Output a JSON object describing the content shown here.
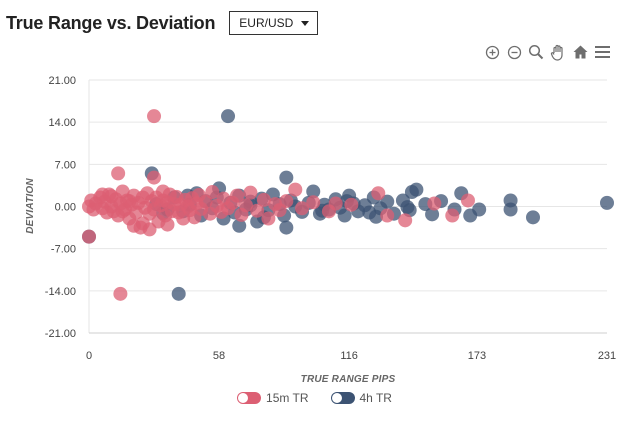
{
  "header": {
    "title": "True Range vs. Deviation",
    "pair": "EUR/USD"
  },
  "toolbar": {
    "icons": [
      "zoom-in-icon",
      "zoom-out-icon",
      "zoom-select-icon",
      "pan-hand-icon",
      "home-icon",
      "menu-icon"
    ]
  },
  "colors": {
    "red": "#dc5f73",
    "navy": "#3c5373",
    "grid": "#e6e6e6"
  },
  "chart_data": {
    "type": "scatter",
    "xlabel": "TRUE RANGE PIPS",
    "ylabel": "DEVIATION",
    "xlim": [
      0,
      231
    ],
    "ylim": [
      -21,
      21
    ],
    "x_ticks": [
      "0",
      "58",
      "116",
      "173",
      "231"
    ],
    "x_tick_values": [
      0,
      58,
      116,
      173,
      231
    ],
    "y_ticks": [
      "21.00",
      "14.00",
      "7.00",
      "0.00",
      "-7.00",
      "-14.00",
      "-21.00"
    ],
    "y_tick_values": [
      21,
      14,
      7,
      0,
      -7,
      -14,
      -21
    ],
    "grid": true,
    "legend_position": "bottom",
    "series": [
      {
        "name": "15m TR",
        "color": "#dc5f73",
        "points": [
          [
            29,
            15
          ],
          [
            14,
            -14.5
          ],
          [
            13,
            5.5
          ],
          [
            0,
            -5
          ],
          [
            0,
            0
          ],
          [
            1,
            1
          ],
          [
            2,
            -0.5
          ],
          [
            3,
            0.5
          ],
          [
            5,
            1.5
          ],
          [
            6,
            -0.3
          ],
          [
            7,
            0.8
          ],
          [
            8,
            -1
          ],
          [
            9,
            2
          ],
          [
            10,
            0
          ],
          [
            11,
            -0.8
          ],
          [
            12,
            1.2
          ],
          [
            13,
            -1.5
          ],
          [
            14,
            0.5
          ],
          [
            15,
            2.5
          ],
          [
            16,
            -0.5
          ],
          [
            17,
            1
          ],
          [
            18,
            -2
          ],
          [
            19,
            0.3
          ],
          [
            20,
            1.8
          ],
          [
            21,
            -1
          ],
          [
            22,
            0.6
          ],
          [
            23,
            -3.5
          ],
          [
            24,
            1.5
          ],
          [
            25,
            -0.2
          ],
          [
            26,
            2.2
          ],
          [
            27,
            -1.2
          ],
          [
            28,
            0.9
          ],
          [
            29,
            -0.5
          ],
          [
            30,
            1.5
          ],
          [
            31,
            -2.5
          ],
          [
            32,
            0.2
          ],
          [
            33,
            1
          ],
          [
            34,
            -1.5
          ],
          [
            35,
            0.7
          ],
          [
            36,
            2
          ],
          [
            37,
            -0.8
          ],
          [
            38,
            0.4
          ],
          [
            39,
            1.6
          ],
          [
            40,
            -1
          ],
          [
            41,
            0.3
          ],
          [
            42,
            -2
          ],
          [
            43,
            1.1
          ],
          [
            44,
            0
          ],
          [
            45,
            -0.6
          ],
          [
            46,
            1.4
          ],
          [
            47,
            -1.8
          ],
          [
            48,
            0.5
          ],
          [
            49,
            1.9
          ],
          [
            50,
            -0.4
          ],
          [
            52,
            0.8
          ],
          [
            54,
            -1.2
          ],
          [
            55,
            2.4
          ],
          [
            57,
            0.1
          ],
          [
            59,
            -0.9
          ],
          [
            60,
            1.3
          ],
          [
            62,
            -0.3
          ],
          [
            64,
            0.6
          ],
          [
            66,
            1.8
          ],
          [
            68,
            -1.4
          ],
          [
            70,
            0.2
          ],
          [
            72,
            2.3
          ],
          [
            75,
            -0.7
          ],
          [
            78,
            1.1
          ],
          [
            80,
            -2
          ],
          [
            83,
            0.4
          ],
          [
            85,
            -0.6
          ],
          [
            88,
            0.9
          ],
          [
            92,
            2.8
          ],
          [
            95,
            -0.3
          ],
          [
            100,
            0.7
          ],
          [
            107,
            -0.8
          ],
          [
            110,
            0.5
          ],
          [
            117,
            0.3
          ],
          [
            129,
            2.2
          ],
          [
            133,
            -1.5
          ],
          [
            141,
            -2.3
          ],
          [
            154,
            0.5
          ],
          [
            162,
            -1.5
          ],
          [
            169,
            1
          ],
          [
            27,
            -3.8
          ],
          [
            29,
            4.8
          ],
          [
            20,
            -3.2
          ],
          [
            24,
            -2.8
          ],
          [
            15,
            -0.8
          ],
          [
            18,
            0.9
          ],
          [
            35,
            -3
          ],
          [
            33,
            2.5
          ],
          [
            10,
            1.7
          ],
          [
            6,
            2
          ]
        ]
      },
      {
        "name": "4h TR",
        "color": "#3c5373",
        "points": [
          [
            62,
            15
          ],
          [
            40,
            -14.5
          ],
          [
            28,
            5.5
          ],
          [
            0,
            -5
          ],
          [
            35,
            -0.5
          ],
          [
            38,
            1.5
          ],
          [
            42,
            -0.8
          ],
          [
            45,
            0.3
          ],
          [
            48,
            2.2
          ],
          [
            50,
            -1.5
          ],
          [
            52,
            0.9
          ],
          [
            55,
            -0.3
          ],
          [
            57,
            1.5
          ],
          [
            58,
            3
          ],
          [
            60,
            -2
          ],
          [
            63,
            0.6
          ],
          [
            65,
            -1
          ],
          [
            67,
            1.8
          ],
          [
            70,
            -0.5
          ],
          [
            72,
            0.2
          ],
          [
            75,
            -2.5
          ],
          [
            77,
            1.3
          ],
          [
            80,
            -0.6
          ],
          [
            82,
            2
          ],
          [
            85,
            0.4
          ],
          [
            87,
            -1.5
          ],
          [
            88,
            -3.5
          ],
          [
            90,
            1
          ],
          [
            92,
            0
          ],
          [
            95,
            -0.9
          ],
          [
            98,
            0.6
          ],
          [
            100,
            2.5
          ],
          [
            103,
            -1.2
          ],
          [
            105,
            0.3
          ],
          [
            107,
            -0.5
          ],
          [
            110,
            1.2
          ],
          [
            112,
            -0.2
          ],
          [
            114,
            -1.5
          ],
          [
            116,
            1.8
          ],
          [
            118,
            0.5
          ],
          [
            120,
            -0.8
          ],
          [
            123,
            0.2
          ],
          [
            125,
            -1
          ],
          [
            127,
            1.5
          ],
          [
            130,
            -0.3
          ],
          [
            133,
            0.8
          ],
          [
            136,
            -1.2
          ],
          [
            140,
            1
          ],
          [
            143,
            -0.6
          ],
          [
            146,
            2.8
          ],
          [
            150,
            0.4
          ],
          [
            153,
            -1.3
          ],
          [
            157,
            0.9
          ],
          [
            163,
            -0.5
          ],
          [
            166,
            2.2
          ],
          [
            170,
            -1.5
          ],
          [
            174,
            -0.5
          ],
          [
            188,
            1
          ],
          [
            188,
            -0.5
          ],
          [
            198,
            -1.8
          ],
          [
            231,
            0.6
          ],
          [
            67,
            -3.2
          ],
          [
            72,
            0.8
          ],
          [
            78,
            -1.8
          ],
          [
            88,
            4.8
          ],
          [
            104,
            -0.7
          ],
          [
            115,
            0.9
          ],
          [
            128,
            -1.7
          ],
          [
            142,
            -0.1
          ],
          [
            144,
            2.4
          ],
          [
            30,
            0.4
          ],
          [
            33,
            -1.1
          ],
          [
            44,
            1.8
          ]
        ]
      }
    ]
  },
  "legend": {
    "items": [
      "15m TR",
      "4h TR"
    ]
  }
}
